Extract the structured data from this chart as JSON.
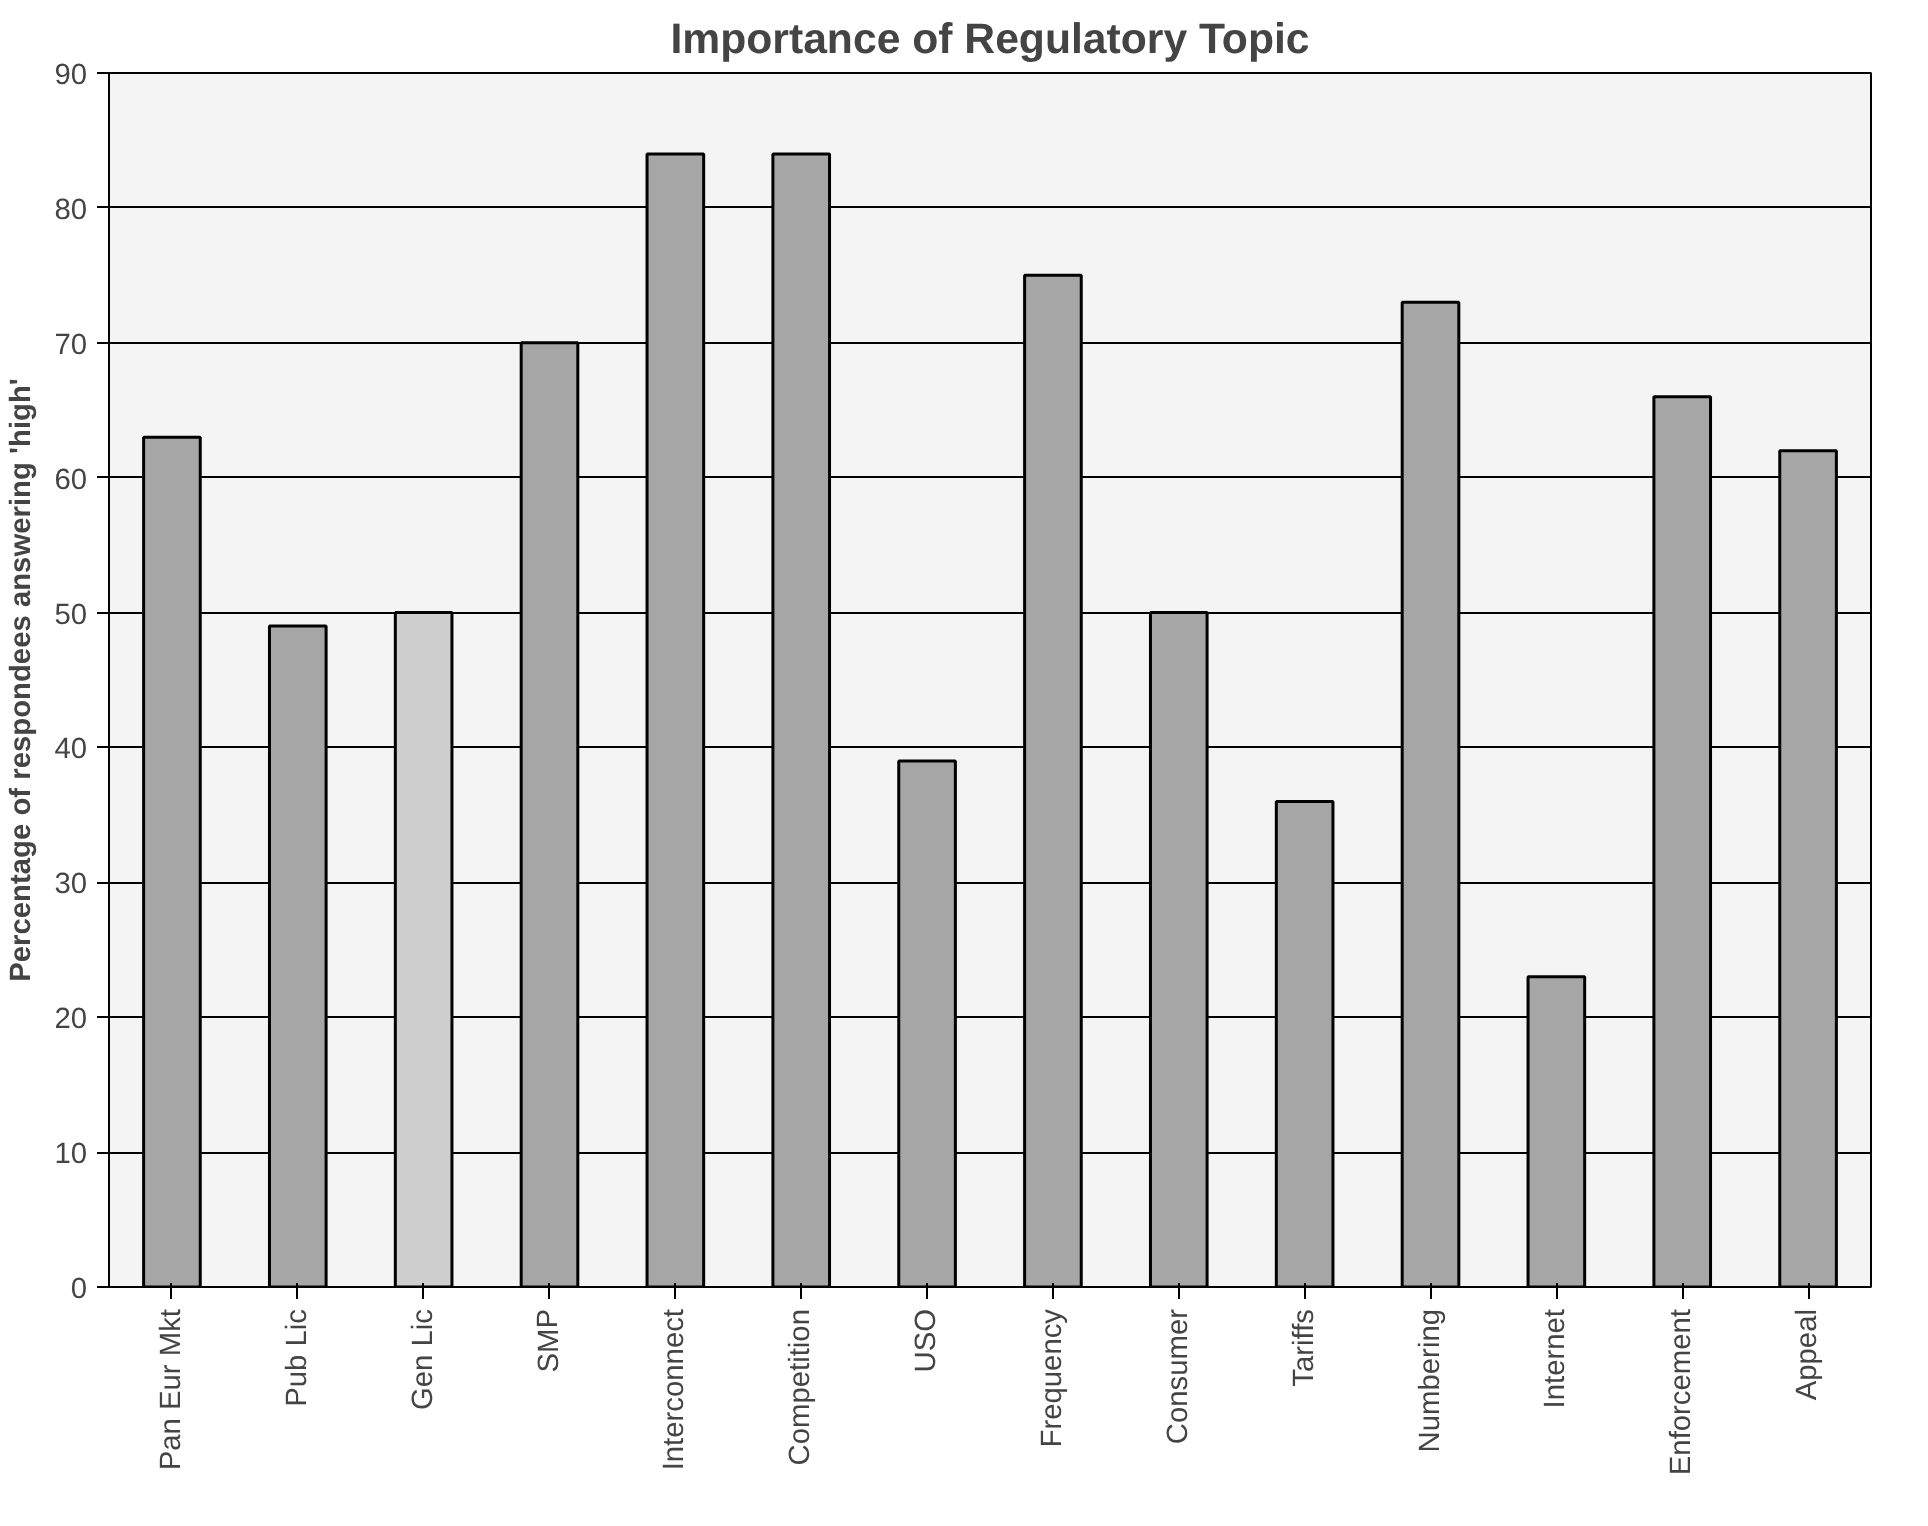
{
  "chart_data": {
    "type": "bar",
    "title": "Importance of Regulatory Topic",
    "ylabel": "Percentage of respondees answering 'high'",
    "categories": [
      "Pan Eur Mkt",
      "Pub Lic",
      "Gen Lic",
      "SMP",
      "Interconnect",
      "Competition",
      "USO",
      "Frequency",
      "Consumer",
      "Tariffs",
      "Numbering",
      "Internet",
      "Enforcement",
      "Appeal"
    ],
    "values": [
      63,
      49,
      50,
      70,
      84,
      84,
      39,
      75,
      50,
      36,
      73,
      23,
      66,
      62
    ],
    "colors": [
      "#a6a6a6",
      "#a6a6a6",
      "#cfcfcf",
      "#a6a6a6",
      "#a6a6a6",
      "#a6a6a6",
      "#a6a6a6",
      "#a6a6a6",
      "#a6a6a6",
      "#a6a6a6",
      "#a6a6a6",
      "#a6a6a6",
      "#a6a6a6",
      "#a6a6a6"
    ],
    "ylim": [
      0,
      90
    ],
    "yticks": [
      0,
      10,
      20,
      30,
      40,
      50,
      60,
      70,
      80,
      90
    ],
    "grid": "y"
  }
}
